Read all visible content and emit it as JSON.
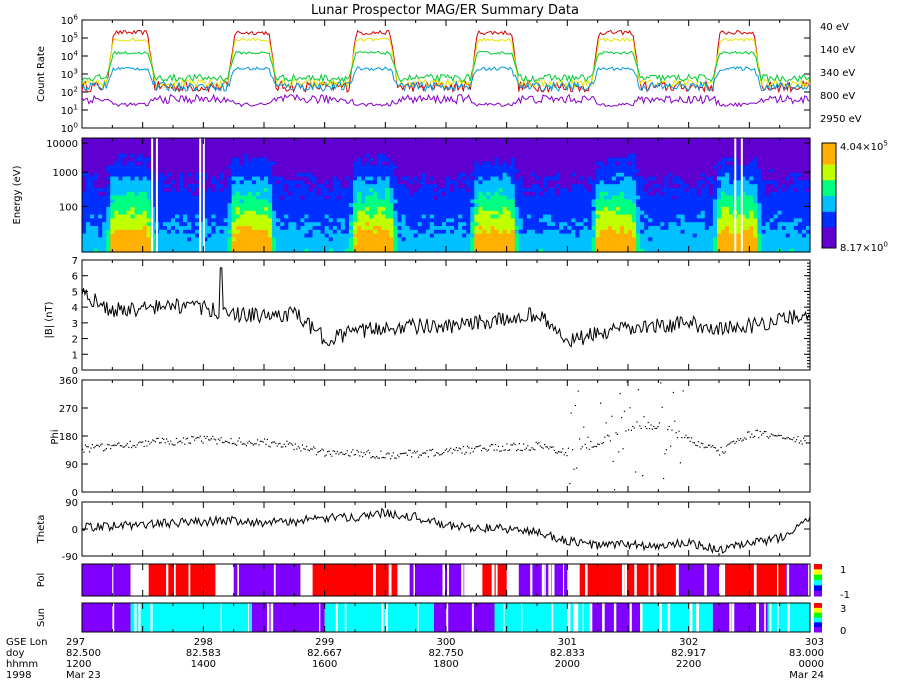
{
  "title": "Lunar Prospector MAG/ER Summary Data",
  "colors": {
    "40 eV": "#d40000",
    "140 eV": "#e6e600",
    "340 eV": "#00cc33",
    "800 eV": "#0099dd",
    "2950 eV": "#8800cc",
    "pol_pos": "#ff0000",
    "pol_neg": "#8000ff",
    "sun_lit": "#00ffff",
    "sun_shadow": "#8000ff"
  },
  "chart_data": [
    {
      "panel": "count_rate",
      "type": "line",
      "ylabel": "Count Rate",
      "yscale": "log",
      "ylim": [
        1,
        1000000
      ],
      "yticks": [
        "10^0",
        "10^1",
        "10^2",
        "10^3",
        "10^4",
        "10^5",
        "10^6"
      ],
      "series": [
        {
          "name": "40 eV",
          "day_level": 200000,
          "night_level": 200,
          "noise": 0.6
        },
        {
          "name": "140 eV",
          "day_level": 80000,
          "night_level": 300,
          "noise": 0.45
        },
        {
          "name": "340 eV",
          "day_level": 15000,
          "night_level": 600,
          "noise": 0.4
        },
        {
          "name": "800 eV",
          "day_level": 2000,
          "night_level": 200,
          "noise": 0.5
        },
        {
          "name": "2950 eV",
          "day_level": 20,
          "night_level": 40,
          "noise": 0.5
        }
      ],
      "day_intervals_hours": [
        [
          0.4,
          1.2
        ],
        [
          2.4,
          3.2
        ],
        [
          4.4,
          5.2
        ],
        [
          6.4,
          7.2
        ],
        [
          8.4,
          9.2
        ],
        [
          10.4,
          11.2
        ]
      ]
    },
    {
      "panel": "energy_spectrogram",
      "type": "heatmap",
      "ylabel": "Energy (eV)",
      "yticks": [
        "100",
        "1000",
        "10000"
      ],
      "colorbar_max": "4.04×10^5",
      "colorbar_min": "8.17×10^0"
    },
    {
      "panel": "b_magnitude",
      "type": "line",
      "ylabel": "|B| (nT)",
      "ylim": [
        0,
        7
      ],
      "yticks": [
        "0",
        "1",
        "2",
        "3",
        "4",
        "5",
        "6",
        "7"
      ],
      "x_hours": [
        0,
        0.5,
        1,
        1.5,
        2,
        2.5,
        3,
        3.5,
        4,
        4.5,
        5,
        5.5,
        6,
        6.5,
        7,
        7.5,
        8,
        8.5,
        9,
        9.5,
        10,
        10.5,
        11,
        11.5,
        12
      ],
      "values": [
        4.8,
        3.8,
        3.9,
        4.1,
        3.9,
        3.6,
        3.4,
        3.6,
        2.0,
        2.4,
        2.7,
        2.8,
        2.7,
        3.0,
        3.2,
        3.6,
        1.8,
        2.3,
        2.6,
        2.8,
        3.0,
        2.6,
        2.8,
        3.2,
        3.6
      ]
    },
    {
      "panel": "phi",
      "type": "scatter",
      "ylabel": "Phi",
      "ylim": [
        0,
        360
      ],
      "yticks": [
        "0",
        "90",
        "180",
        "270",
        "360"
      ],
      "x_hours": [
        0,
        0.5,
        1,
        1.5,
        2,
        2.5,
        3,
        3.5,
        4,
        4.5,
        5,
        5.5,
        6,
        6.5,
        7,
        7.5,
        8,
        8.5,
        9,
        9.5,
        10,
        10.5,
        11,
        11.5,
        12
      ],
      "values": [
        140,
        150,
        160,
        165,
        170,
        165,
        160,
        150,
        125,
        130,
        120,
        125,
        130,
        140,
        145,
        150,
        130,
        160,
        200,
        220,
        170,
        130,
        190,
        180,
        160
      ]
    },
    {
      "panel": "theta",
      "type": "line",
      "ylabel": "Theta",
      "ylim": [
        -90,
        90
      ],
      "yticks": [
        "-90",
        "0",
        "90"
      ],
      "x_hours": [
        0,
        0.5,
        1,
        1.5,
        2,
        2.5,
        3,
        3.5,
        4,
        4.5,
        5,
        5.5,
        6,
        6.5,
        7,
        7.5,
        8,
        8.5,
        9,
        9.5,
        10,
        10.5,
        11,
        11.5,
        12
      ],
      "values": [
        5,
        10,
        15,
        20,
        25,
        30,
        20,
        25,
        35,
        40,
        55,
        40,
        10,
        5,
        0,
        -10,
        -40,
        -55,
        -50,
        -60,
        -45,
        -70,
        -50,
        -30,
        40
      ]
    },
    {
      "panel": "pol",
      "type": "bar",
      "ylabel": "Pol",
      "yticks": [
        "1",
        "-1"
      ],
      "segments_hours": [
        {
          "start": 0.0,
          "end": 0.8,
          "v": -1
        },
        {
          "start": 1.1,
          "end": 2.2,
          "v": 1
        },
        {
          "start": 2.5,
          "end": 3.6,
          "v": -1
        },
        {
          "start": 3.8,
          "end": 5.2,
          "v": 1
        },
        {
          "start": 5.4,
          "end": 6.3,
          "v": -1
        },
        {
          "start": 6.6,
          "end": 7.0,
          "v": 1
        },
        {
          "start": 7.2,
          "end": 8.0,
          "v": -1
        },
        {
          "start": 8.2,
          "end": 9.8,
          "v": 1
        },
        {
          "start": 9.8,
          "end": 10.5,
          "v": -1
        },
        {
          "start": 10.6,
          "end": 11.6,
          "v": 1
        },
        {
          "start": 11.6,
          "end": 12.0,
          "v": -1
        }
      ]
    },
    {
      "panel": "sun",
      "type": "bar",
      "ylabel": "Sun",
      "yticks": [
        "3",
        "0"
      ],
      "segments_hours": [
        {
          "start": 0.0,
          "end": 0.8,
          "v": 0
        },
        {
          "start": 0.8,
          "end": 2.8,
          "v": 3
        },
        {
          "start": 2.8,
          "end": 4.0,
          "v": 0
        },
        {
          "start": 4.0,
          "end": 5.8,
          "v": 3
        },
        {
          "start": 5.8,
          "end": 6.8,
          "v": 0
        },
        {
          "start": 6.8,
          "end": 8.4,
          "v": 3
        },
        {
          "start": 8.4,
          "end": 9.2,
          "v": 0
        },
        {
          "start": 9.2,
          "end": 10.4,
          "v": 3
        },
        {
          "start": 10.4,
          "end": 11.3,
          "v": 0
        },
        {
          "start": 11.3,
          "end": 12.0,
          "v": 3
        }
      ]
    }
  ],
  "x_axis": {
    "row_labels": [
      "GSE Lon",
      "doy",
      "hhmm",
      "1998"
    ],
    "ticks": [
      {
        "lon": "297",
        "doy": "82.500",
        "hhmm": "1200",
        "date": "Mar 23"
      },
      {
        "lon": "298",
        "doy": "82.583",
        "hhmm": "1400",
        "date": ""
      },
      {
        "lon": "299",
        "doy": "82.667",
        "hhmm": "1600",
        "date": ""
      },
      {
        "lon": "300",
        "doy": "82.750",
        "hhmm": "1800",
        "date": ""
      },
      {
        "lon": "301",
        "doy": "82.833",
        "hhmm": "2000",
        "date": ""
      },
      {
        "lon": "302",
        "doy": "82.917",
        "hhmm": "2200",
        "date": ""
      },
      {
        "lon": "303",
        "doy": "83.000",
        "hhmm": "0000",
        "date": "Mar 24"
      }
    ]
  }
}
